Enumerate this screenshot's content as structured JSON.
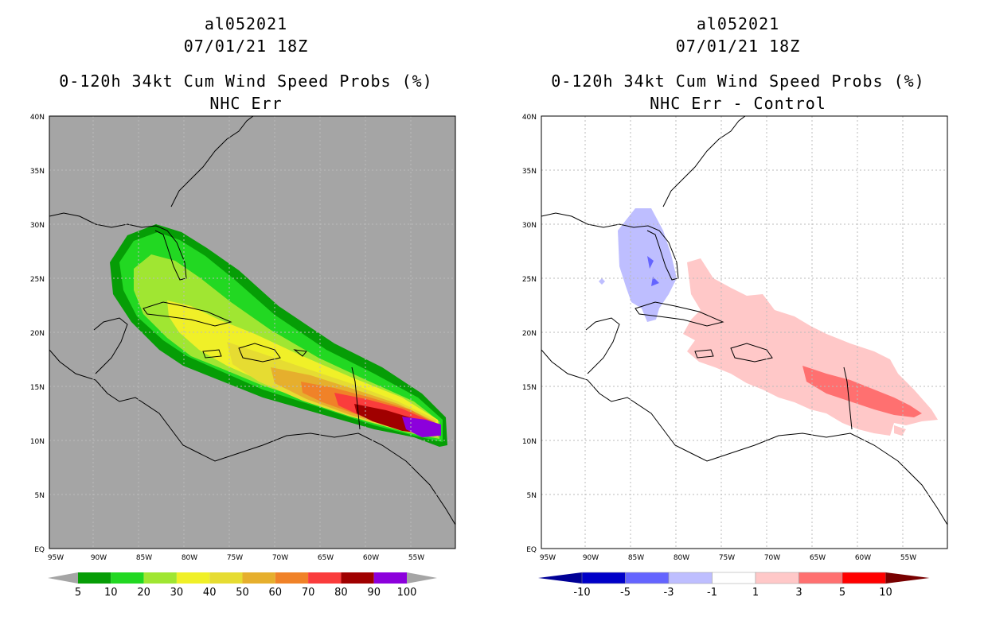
{
  "left_panel": {
    "title_storm": "al052021",
    "title_time": "07/01/21 18Z",
    "title_product": "0-120h 34kt Cum Wind Speed Probs (%)",
    "title_variant": "NHC Err",
    "colorbar": {
      "labels": [
        "5",
        "10",
        "20",
        "30",
        "40",
        "50",
        "60",
        "70",
        "80",
        "90",
        "100"
      ],
      "colors": [
        "#069d06",
        "#22d822",
        "#a0e632",
        "#f0f028",
        "#e6dc32",
        "#e6af2d",
        "#f08228",
        "#fa3c3c",
        "#a00000",
        "#8c00dc"
      ],
      "extend_color": "#a5a5a5"
    }
  },
  "right_panel": {
    "title_storm": "al052021",
    "title_time": "07/01/21 18Z",
    "title_product": "0-120h 34kt Cum Wind Speed Probs (%)",
    "title_variant": "NHC Err - Control",
    "colorbar": {
      "labels": [
        "-10",
        "-5",
        "-3",
        "-1",
        "1",
        "3",
        "5",
        "10"
      ],
      "colors": [
        "#0000c8",
        "#6464ff",
        "#bebeff",
        "#ffffff",
        "#ffc8c8",
        "#ff7070",
        "#ff0000"
      ],
      "left_extend_color": "#000096",
      "right_extend_color": "#780000"
    }
  },
  "axes": {
    "lat_labels": [
      "EQ",
      "5N",
      "10N",
      "15N",
      "20N",
      "25N",
      "30N",
      "35N",
      "40N"
    ],
    "lon_labels": [
      "95W",
      "90W",
      "85W",
      "80W",
      "75W",
      "70W",
      "65W",
      "60W",
      "55W"
    ]
  },
  "colors": {
    "land_ocean_gray": "#a5a5a5",
    "coastline": "#000000",
    "grid": "#bbbbbb"
  }
}
